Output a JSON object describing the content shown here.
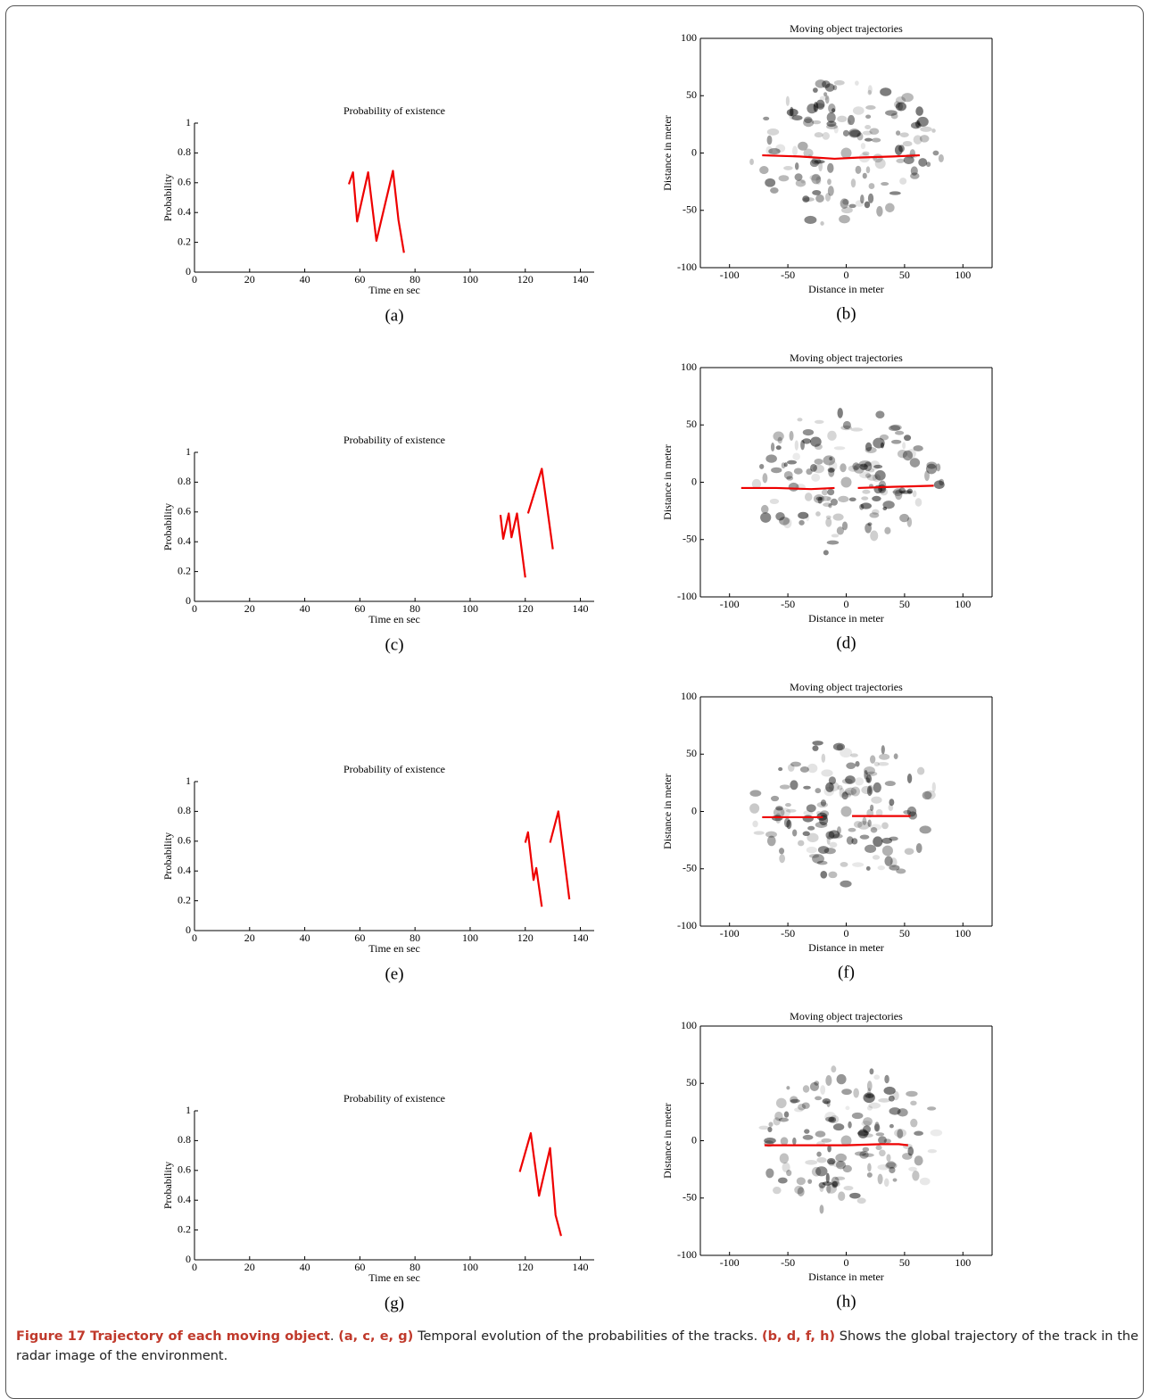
{
  "chart_data": [
    {
      "type": "line",
      "panel_label": "(a)",
      "title": "Probability of existence",
      "xlabel": "Time en sec",
      "ylabel": "Probability",
      "x": [
        56,
        57.5,
        59,
        63,
        66,
        72,
        74,
        76
      ],
      "series": [
        {
          "color": "#ee0000",
          "values": [
            0.59,
            0.67,
            0.34,
            0.67,
            0.21,
            0.68,
            0.35,
            0.13
          ]
        }
      ],
      "xlim": [
        0,
        145
      ],
      "ylim": [
        0,
        1
      ],
      "xticks": [
        0,
        20,
        40,
        60,
        80,
        100,
        120,
        140
      ],
      "yticks": [
        0,
        0.2,
        0.4,
        0.6,
        0.8,
        1
      ],
      "box": false
    },
    {
      "type": "line",
      "panel_label": "(b)",
      "title": "Moving object trajectories",
      "xlabel": "Distance in meter",
      "ylabel": "Distance in meter",
      "x": [
        -72,
        -40,
        -10,
        10,
        40,
        63
      ],
      "series": [
        {
          "color": "#ee0000",
          "values": [
            -2,
            -3,
            -5,
            -4,
            -3,
            -2
          ]
        }
      ],
      "xlim": [
        -125,
        125
      ],
      "ylim": [
        -100,
        100
      ],
      "xticks": [
        -100,
        -50,
        0,
        50,
        100
      ],
      "yticks": [
        -100,
        -50,
        0,
        50,
        100
      ],
      "box": true
    },
    {
      "type": "line",
      "panel_label": "(c)",
      "title": "Probability of existence",
      "xlabel": "Time en sec",
      "ylabel": "Probability",
      "x": [
        111,
        112,
        114,
        115,
        117,
        120,
        null,
        121,
        126,
        130
      ],
      "series": [
        {
          "color": "#ee0000",
          "values": [
            0.58,
            0.42,
            0.59,
            0.43,
            0.59,
            0.16,
            null,
            0.59,
            0.89,
            0.35
          ]
        }
      ],
      "xlim": [
        0,
        145
      ],
      "ylim": [
        0,
        1
      ],
      "xticks": [
        0,
        20,
        40,
        60,
        80,
        100,
        120,
        140
      ],
      "yticks": [
        0,
        0.2,
        0.4,
        0.6,
        0.8,
        1
      ],
      "box": false
    },
    {
      "type": "line",
      "panel_label": "(d)",
      "title": "Moving object trajectories",
      "xlabel": "Distance in meter",
      "ylabel": "Distance in meter",
      "x": [
        -90,
        -60,
        -30,
        -10,
        null,
        10,
        40,
        75
      ],
      "series": [
        {
          "color": "#ee0000",
          "values": [
            -5,
            -5,
            -6,
            -5,
            null,
            -5,
            -4,
            -3
          ]
        }
      ],
      "xlim": [
        -125,
        125
      ],
      "ylim": [
        -100,
        100
      ],
      "xticks": [
        -100,
        -50,
        0,
        50,
        100
      ],
      "yticks": [
        -100,
        -50,
        0,
        50,
        100
      ],
      "box": true
    },
    {
      "type": "line",
      "panel_label": "(e)",
      "title": "Probability of existence",
      "xlabel": "Time en sec",
      "ylabel": "Probability",
      "x": [
        120,
        121,
        123,
        124,
        126,
        null,
        129,
        132,
        136
      ],
      "series": [
        {
          "color": "#ee0000",
          "values": [
            0.59,
            0.66,
            0.34,
            0.42,
            0.16,
            null,
            0.59,
            0.8,
            0.21
          ]
        }
      ],
      "xlim": [
        0,
        145
      ],
      "ylim": [
        0,
        1
      ],
      "xticks": [
        0,
        20,
        40,
        60,
        80,
        100,
        120,
        140
      ],
      "yticks": [
        0,
        0.2,
        0.4,
        0.6,
        0.8,
        1
      ],
      "box": false
    },
    {
      "type": "line",
      "panel_label": "(f)",
      "title": "Moving object trajectories",
      "xlabel": "Distance in meter",
      "ylabel": "Distance in meter",
      "x": [
        -72,
        -20,
        null,
        5,
        30,
        55
      ],
      "series": [
        {
          "color": "#ee0000",
          "values": [
            -5,
            -5,
            null,
            -4,
            -4,
            -4
          ]
        }
      ],
      "xlim": [
        -125,
        125
      ],
      "ylim": [
        -100,
        100
      ],
      "xticks": [
        -100,
        -50,
        0,
        50,
        100
      ],
      "yticks": [
        -100,
        -50,
        0,
        50,
        100
      ],
      "box": true
    },
    {
      "type": "line",
      "panel_label": "(g)",
      "title": "Probability of existence",
      "xlabel": "Time en sec",
      "ylabel": "Probability",
      "x": [
        118,
        122,
        125,
        129,
        131,
        133
      ],
      "series": [
        {
          "color": "#ee0000",
          "values": [
            0.59,
            0.85,
            0.43,
            0.75,
            0.3,
            0.16
          ]
        }
      ],
      "xlim": [
        0,
        145
      ],
      "ylim": [
        0,
        1
      ],
      "xticks": [
        0,
        20,
        40,
        60,
        80,
        100,
        120,
        140
      ],
      "yticks": [
        0,
        0.2,
        0.4,
        0.6,
        0.8,
        1
      ],
      "box": false
    },
    {
      "type": "line",
      "panel_label": "(h)",
      "title": "Moving object trajectories",
      "xlabel": "Distance in meter",
      "ylabel": "Distance in meter",
      "x": [
        -70,
        -30,
        0,
        30,
        45,
        53
      ],
      "series": [
        {
          "color": "#ee0000",
          "values": [
            -4,
            -4,
            -4,
            -3,
            -3,
            -4
          ]
        }
      ],
      "xlim": [
        -125,
        125
      ],
      "ylim": [
        -100,
        100
      ],
      "xticks": [
        -100,
        -50,
        0,
        50,
        100
      ],
      "yticks": [
        -100,
        -50,
        0,
        50,
        100
      ],
      "box": true
    }
  ],
  "caption": [
    {
      "text": "Figure 17 Trajectory of each moving object",
      "bold": true
    },
    {
      "text": ". ",
      "bold": false
    },
    {
      "text": "(a, c, e, g)",
      "bold": true
    },
    {
      "text": " Temporal evolution of the probabilities of the tracks. ",
      "bold": false
    },
    {
      "text": "(b, d, f, h)",
      "bold": true
    },
    {
      "text": " Shows the global trajectory of the track in the radar image of the environment.",
      "bold": false
    }
  ]
}
